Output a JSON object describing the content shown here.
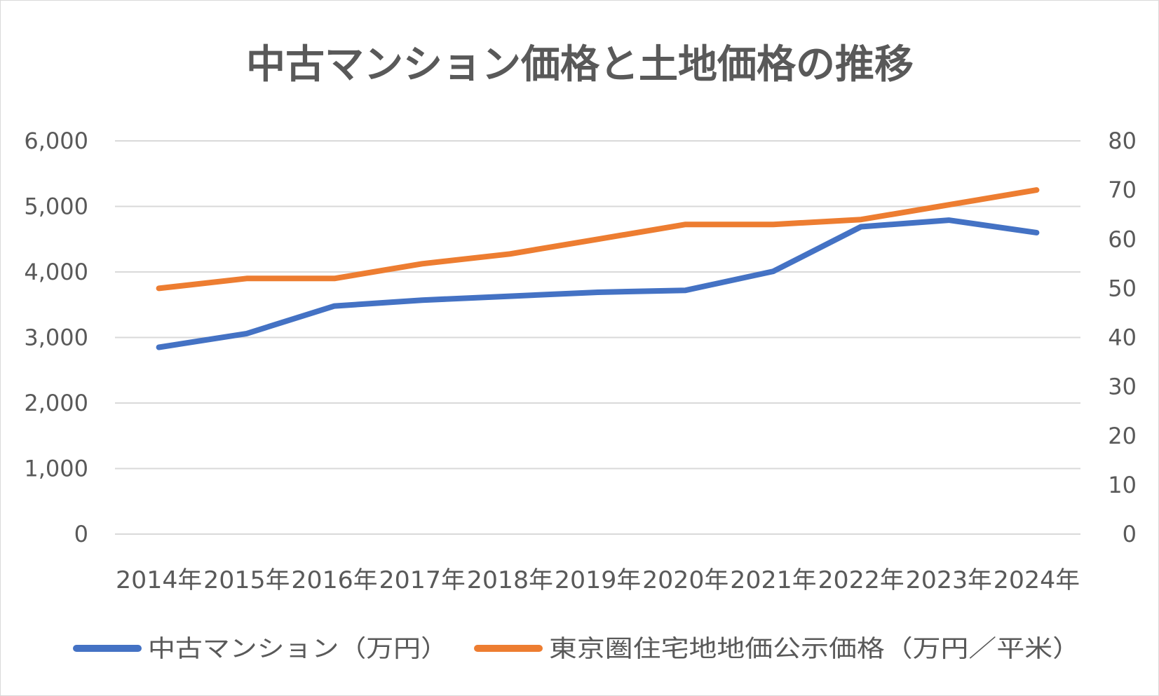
{
  "chart_data": {
    "type": "line",
    "title": "中古マンション価格と土地価格の推移",
    "categories": [
      "2014年",
      "2015年",
      "2016年",
      "2017年",
      "2018年",
      "2019年",
      "2020年",
      "2021年",
      "2022年",
      "2023年",
      "2024年"
    ],
    "y_left": {
      "min": 0,
      "max": 6000,
      "step": 1000,
      "tick_labels": [
        "0",
        "1,000",
        "2,000",
        "3,000",
        "4,000",
        "5,000",
        "6,000"
      ]
    },
    "y_right": {
      "min": 0,
      "max": 80,
      "step": 10,
      "tick_labels": [
        "0",
        "10",
        "20",
        "30",
        "40",
        "50",
        "60",
        "70",
        "80"
      ]
    },
    "grid": true,
    "legend_position": "bottom",
    "series": [
      {
        "name": "中古マンション（万円）",
        "axis": "left",
        "color": "#4472c4",
        "values": [
          2850,
          3060,
          3480,
          3570,
          3630,
          3690,
          3720,
          4010,
          4690,
          4790,
          4600
        ]
      },
      {
        "name": "東京圏住宅地地価公示価格（万円／平米）",
        "axis": "right",
        "color": "#ed7d31",
        "values": [
          50,
          52,
          52,
          55,
          57,
          60,
          63,
          63,
          64,
          67,
          70
        ]
      }
    ]
  }
}
